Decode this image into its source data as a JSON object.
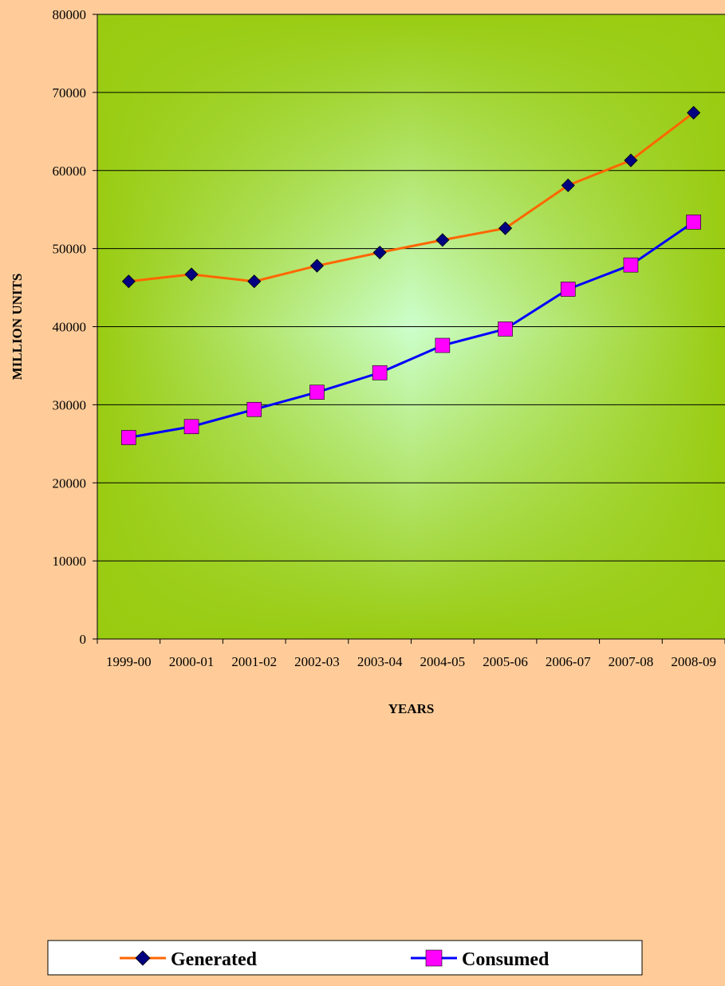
{
  "chart_data": {
    "type": "line",
    "title": "",
    "xlabel": "YEARS",
    "ylabel": "MILLION UNITS",
    "categories": [
      "1999-00",
      "2000-01",
      "2001-02",
      "2002-03",
      "2003-04",
      "2004-05",
      "2005-06",
      "2006-07",
      "2007-08",
      "2008-09"
    ],
    "series": [
      {
        "name": "Generated",
        "color": "#FF6600",
        "marker": "diamond",
        "marker_color": "#000080",
        "values": [
          45800,
          46700,
          45800,
          47800,
          49500,
          51100,
          52600,
          58100,
          61300,
          67400
        ]
      },
      {
        "name": "Consumed",
        "color": "#0000FF",
        "marker": "square",
        "marker_color": "#FF00FF",
        "values": [
          25800,
          27200,
          29400,
          31600,
          34100,
          37600,
          39700,
          44800,
          47900,
          53400
        ]
      }
    ],
    "ylim": [
      0,
      80000
    ],
    "yticks": [
      0,
      10000,
      20000,
      30000,
      40000,
      50000,
      60000,
      70000,
      80000
    ],
    "grid": true,
    "legend_position": "bottom",
    "colors": {
      "background": "#FFCC99",
      "plot_outer": "#99CC11",
      "plot_inner": "#CCFFCC"
    }
  }
}
